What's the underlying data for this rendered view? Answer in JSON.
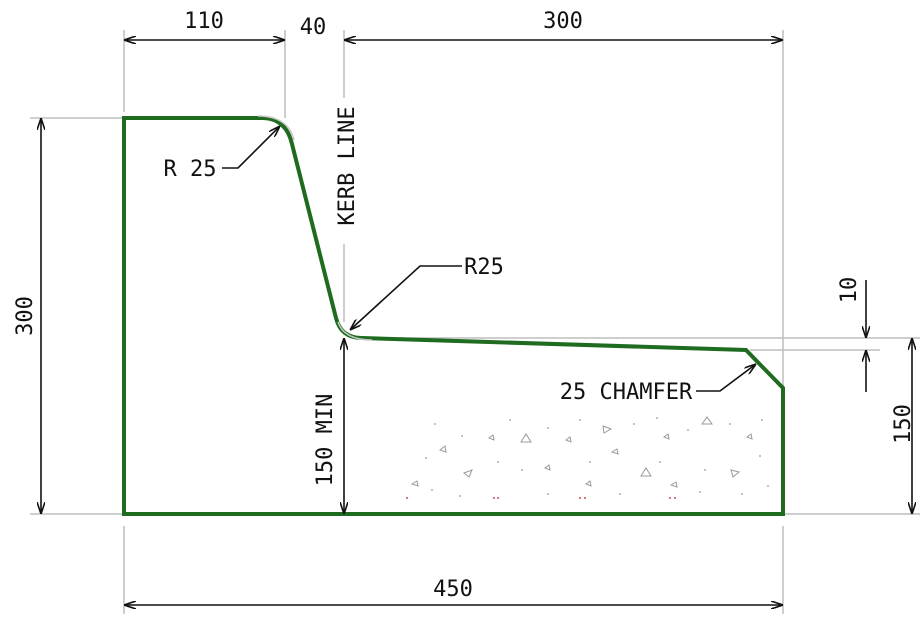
{
  "colors": {
    "profile": "#1f6b1f",
    "dimension": "#111111",
    "extension": "#bdbdbd",
    "aggregate": "#9a9a9a",
    "aggregate_dot": "#d07070",
    "background": "#ffffff"
  },
  "dimensions": {
    "top_left_width": "110",
    "top_gap": "40",
    "top_right_width": "300",
    "left_height": "300",
    "bottom_width": "450",
    "right_height": "150",
    "drop": "10",
    "min_depth": "150 MIN"
  },
  "labels": {
    "kerb_line": "KERB  LINE",
    "radius_top": "R 25",
    "radius_bottom": "R25",
    "chamfer": "25 CHAMFER"
  }
}
